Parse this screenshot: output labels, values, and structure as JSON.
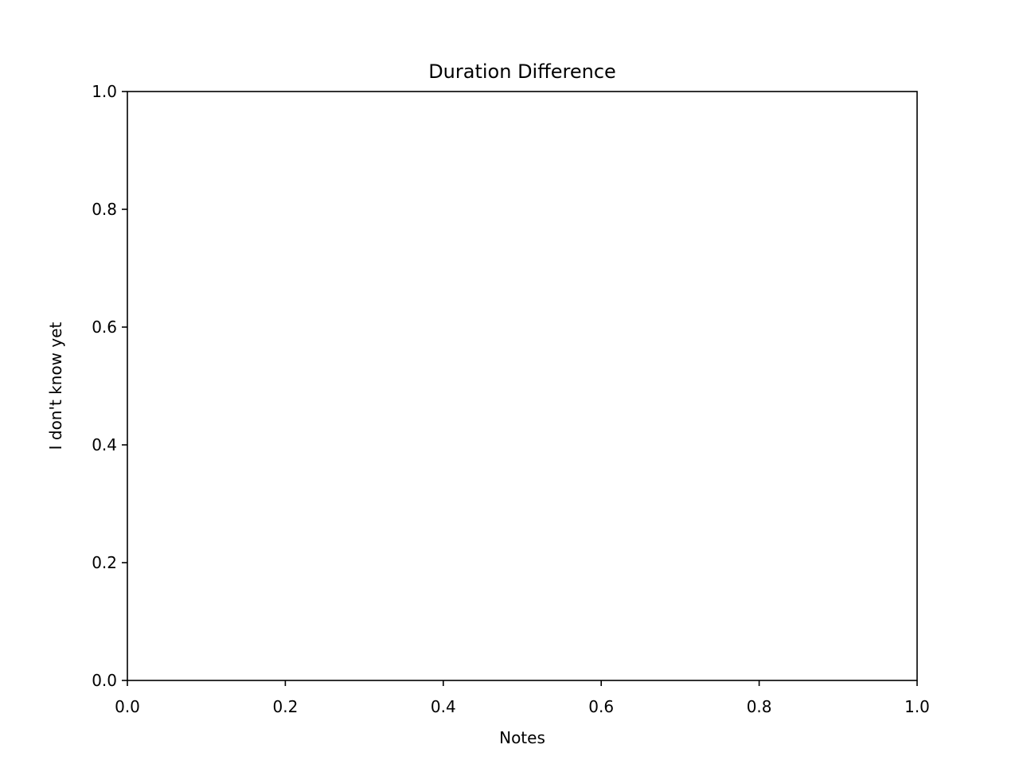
{
  "chart_data": {
    "type": "scatter",
    "title": "Duration Difference",
    "xlabel": "Notes",
    "ylabel": "I don't know yet",
    "xlim": [
      0.0,
      1.0
    ],
    "ylim": [
      0.0,
      1.0
    ],
    "xticks": [
      "0.0",
      "0.2",
      "0.4",
      "0.6",
      "0.8",
      "1.0"
    ],
    "yticks": [
      "0.0",
      "0.2",
      "0.4",
      "0.6",
      "0.8",
      "1.0"
    ],
    "series": [],
    "grid": false,
    "legend": "none"
  }
}
